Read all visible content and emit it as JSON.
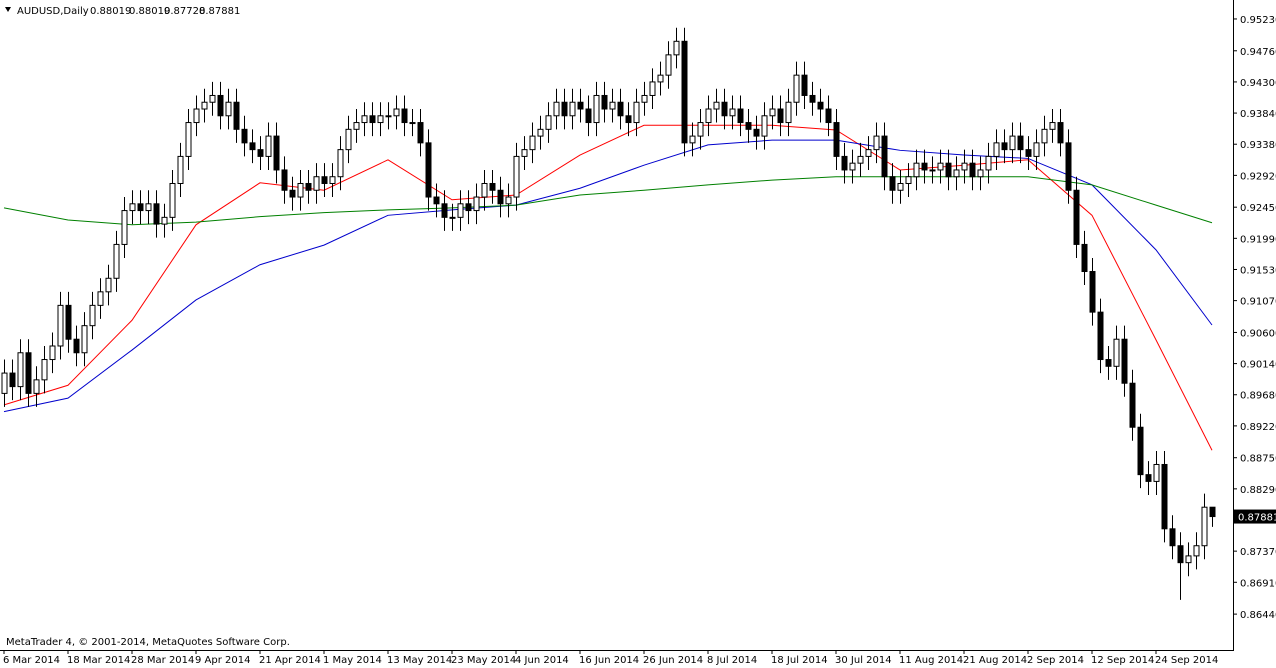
{
  "chart_data": {
    "type": "candlestick",
    "symbol_label": "AUDUSD,Daily",
    "footer": "MetaTrader 4, © 2001-2014, MetaQuotes Software Corp.",
    "ylim": [
      0.8591,
      0.9551
    ],
    "yticks": [
      {
        "value": 0.9523,
        "label": "0.95230"
      },
      {
        "value": 0.9476,
        "label": "0.94760"
      },
      {
        "value": 0.943,
        "label": "0.94300"
      },
      {
        "value": 0.9384,
        "label": "0.93840"
      },
      {
        "value": 0.9338,
        "label": "0.93380"
      },
      {
        "value": 0.9292,
        "label": "0.92920"
      },
      {
        "value": 0.9245,
        "label": "0.92450"
      },
      {
        "value": 0.9199,
        "label": "0.91990"
      },
      {
        "value": 0.9153,
        "label": "0.91530"
      },
      {
        "value": 0.9107,
        "label": "0.91070"
      },
      {
        "value": 0.906,
        "label": "0.90600"
      },
      {
        "value": 0.9014,
        "label": "0.90140"
      },
      {
        "value": 0.8968,
        "label": "0.89680"
      },
      {
        "value": 0.8922,
        "label": "0.89220"
      },
      {
        "value": 0.8875,
        "label": "0.88750"
      },
      {
        "value": 0.8829,
        "label": "0.88290"
      },
      {
        "value": 0.8737,
        "label": "0.87370"
      },
      {
        "value": 0.8691,
        "label": "0.86910"
      },
      {
        "value": 0.8644,
        "label": "0.86440"
      }
    ],
    "xticks": [
      {
        "value": 0,
        "label": "6 Mar 2014"
      },
      {
        "value": 8,
        "label": "18 Mar 2014"
      },
      {
        "value": 16,
        "label": "28 Mar 2014"
      },
      {
        "value": 24,
        "label": "9 Apr 2014"
      },
      {
        "value": 32,
        "label": "21 Apr 2014"
      },
      {
        "value": 40,
        "label": "1 May 2014"
      },
      {
        "value": 48,
        "label": "13 May 2014"
      },
      {
        "value": 56,
        "label": "23 May 2014"
      },
      {
        "value": 64,
        "label": "4 Jun 2014"
      },
      {
        "value": 72,
        "label": "16 Jun 2014"
      },
      {
        "value": 80,
        "label": "26 Jun 2014"
      },
      {
        "value": 88,
        "label": "8 Jul 2014"
      },
      {
        "value": 96,
        "label": "18 Jul 2014"
      },
      {
        "value": 104,
        "label": "30 Jul 2014"
      },
      {
        "value": 112,
        "label": "11 Aug 2014"
      },
      {
        "value": 120,
        "label": "21 Aug 2014"
      },
      {
        "value": 128,
        "label": "2 Sep 2014"
      },
      {
        "value": 136,
        "label": "12 Sep 2014"
      },
      {
        "value": 144,
        "label": "24 Sep 2014"
      }
    ],
    "open": [
      0.897,
      0.9,
      0.898,
      0.903,
      0.897,
      0.899,
      0.902,
      0.904,
      0.91,
      0.905,
      0.903,
      0.907,
      0.91,
      0.912,
      0.914,
      0.919,
      0.924,
      0.925,
      0.924,
      0.925,
      0.922,
      0.923,
      0.928,
      0.932,
      0.937,
      0.939,
      0.94,
      0.941,
      0.938,
      0.94,
      0.936,
      0.934,
      0.933,
      0.932,
      0.935,
      0.93,
      0.927,
      0.926,
      0.928,
      0.927,
      0.929,
      0.928,
      0.929,
      0.933,
      0.936,
      0.937,
      0.938,
      0.937,
      0.938,
      0.938,
      0.939,
      0.937,
      0.937,
      0.934,
      0.926,
      0.925,
      0.923,
      0.923,
      0.925,
      0.924,
      0.926,
      0.928,
      0.927,
      0.925,
      0.926,
      0.932,
      0.933,
      0.935,
      0.936,
      0.938,
      0.94,
      0.938,
      0.94,
      0.939,
      0.937,
      0.941,
      0.939,
      0.94,
      0.938,
      0.937,
      0.94,
      0.941,
      0.943,
      0.944,
      0.947,
      0.949,
      0.934,
      0.935,
      0.937,
      0.939,
      0.94,
      0.938,
      0.939,
      0.937,
      0.936,
      0.935,
      0.938,
      0.939,
      0.937,
      0.94,
      0.944,
      0.941,
      0.94,
      0.939,
      0.937,
      0.932,
      0.93,
      0.931,
      0.932,
      0.933,
      0.935,
      0.929,
      0.927,
      0.928,
      0.929,
      0.931,
      0.93,
      0.93,
      0.931,
      0.929,
      0.93,
      0.931,
      0.929,
      0.93,
      0.932,
      0.934,
      0.933,
      0.935,
      0.933,
      0.932,
      0.934,
      0.936,
      0.937,
      0.934,
      0.927,
      0.919,
      0.915,
      0.909,
      0.902,
      0.901,
      0.905,
      0.8985,
      0.892,
      0.885,
      0.884,
      0.8865,
      0.877,
      0.8745,
      0.872,
      0.873,
      0.8745,
      0.88019
    ],
    "high": [
      0.902,
      0.902,
      0.905,
      0.905,
      0.901,
      0.904,
      0.906,
      0.912,
      0.912,
      0.907,
      0.909,
      0.912,
      0.914,
      0.916,
      0.921,
      0.926,
      0.927,
      0.927,
      0.927,
      0.927,
      0.925,
      0.93,
      0.934,
      0.939,
      0.941,
      0.942,
      0.943,
      0.943,
      0.942,
      0.942,
      0.938,
      0.936,
      0.935,
      0.937,
      0.937,
      0.932,
      0.929,
      0.93,
      0.93,
      0.931,
      0.931,
      0.931,
      0.935,
      0.938,
      0.939,
      0.94,
      0.94,
      0.94,
      0.94,
      0.941,
      0.941,
      0.939,
      0.939,
      0.936,
      0.928,
      0.927,
      0.925,
      0.927,
      0.927,
      0.928,
      0.93,
      0.93,
      0.929,
      0.928,
      0.934,
      0.935,
      0.937,
      0.938,
      0.94,
      0.942,
      0.942,
      0.942,
      0.942,
      0.941,
      0.943,
      0.943,
      0.942,
      0.942,
      0.94,
      0.942,
      0.943,
      0.945,
      0.946,
      0.949,
      0.951,
      0.951,
      0.937,
      0.939,
      0.941,
      0.942,
      0.942,
      0.941,
      0.941,
      0.939,
      0.938,
      0.94,
      0.941,
      0.941,
      0.942,
      0.946,
      0.946,
      0.943,
      0.942,
      0.941,
      0.939,
      0.934,
      0.933,
      0.934,
      0.935,
      0.937,
      0.937,
      0.931,
      0.93,
      0.931,
      0.933,
      0.933,
      0.932,
      0.933,
      0.933,
      0.932,
      0.933,
      0.933,
      0.932,
      0.934,
      0.936,
      0.936,
      0.937,
      0.937,
      0.935,
      0.936,
      0.938,
      0.939,
      0.939,
      0.936,
      0.929,
      0.921,
      0.917,
      0.911,
      0.904,
      0.907,
      0.907,
      0.9005,
      0.894,
      0.887,
      0.8885,
      0.8885,
      0.879,
      0.8765,
      0.875,
      0.8765,
      0.8822,
      0.88019
    ],
    "low": [
      0.895,
      0.896,
      0.896,
      0.895,
      0.895,
      0.897,
      0.9,
      0.902,
      0.903,
      0.901,
      0.901,
      0.905,
      0.908,
      0.91,
      0.912,
      0.917,
      0.922,
      0.922,
      0.922,
      0.92,
      0.92,
      0.921,
      0.926,
      0.93,
      0.935,
      0.937,
      0.938,
      0.936,
      0.936,
      0.934,
      0.932,
      0.931,
      0.93,
      0.93,
      0.928,
      0.925,
      0.924,
      0.924,
      0.925,
      0.925,
      0.926,
      0.926,
      0.927,
      0.931,
      0.934,
      0.935,
      0.935,
      0.935,
      0.936,
      0.936,
      0.935,
      0.935,
      0.932,
      0.924,
      0.923,
      0.921,
      0.921,
      0.921,
      0.922,
      0.922,
      0.924,
      0.925,
      0.923,
      0.923,
      0.924,
      0.93,
      0.931,
      0.933,
      0.934,
      0.936,
      0.936,
      0.936,
      0.937,
      0.935,
      0.935,
      0.937,
      0.937,
      0.936,
      0.935,
      0.935,
      0.938,
      0.939,
      0.941,
      0.942,
      0.945,
      0.932,
      0.932,
      0.933,
      0.935,
      0.937,
      0.936,
      0.936,
      0.935,
      0.934,
      0.933,
      0.933,
      0.936,
      0.935,
      0.935,
      0.938,
      0.939,
      0.938,
      0.937,
      0.935,
      0.93,
      0.928,
      0.928,
      0.929,
      0.93,
      0.931,
      0.927,
      0.925,
      0.925,
      0.926,
      0.927,
      0.928,
      0.928,
      0.928,
      0.927,
      0.927,
      0.928,
      0.927,
      0.927,
      0.928,
      0.93,
      0.931,
      0.931,
      0.931,
      0.93,
      0.93,
      0.932,
      0.934,
      0.932,
      0.925,
      0.917,
      0.913,
      0.907,
      0.9,
      0.899,
      0.899,
      0.8965,
      0.89,
      0.883,
      0.882,
      0.882,
      0.875,
      0.8725,
      0.8665,
      0.87,
      0.871,
      0.8725,
      0.87728
    ],
    "close": [
      0.9,
      0.898,
      0.903,
      0.897,
      0.899,
      0.902,
      0.904,
      0.91,
      0.905,
      0.903,
      0.907,
      0.91,
      0.912,
      0.914,
      0.919,
      0.924,
      0.925,
      0.924,
      0.925,
      0.922,
      0.923,
      0.928,
      0.932,
      0.937,
      0.939,
      0.94,
      0.941,
      0.938,
      0.94,
      0.936,
      0.934,
      0.933,
      0.932,
      0.935,
      0.93,
      0.927,
      0.926,
      0.928,
      0.927,
      0.929,
      0.928,
      0.929,
      0.933,
      0.936,
      0.937,
      0.938,
      0.937,
      0.938,
      0.938,
      0.939,
      0.937,
      0.937,
      0.934,
      0.926,
      0.925,
      0.923,
      0.923,
      0.925,
      0.924,
      0.926,
      0.928,
      0.927,
      0.925,
      0.926,
      0.932,
      0.933,
      0.935,
      0.936,
      0.938,
      0.94,
      0.938,
      0.94,
      0.939,
      0.937,
      0.941,
      0.939,
      0.94,
      0.938,
      0.937,
      0.94,
      0.941,
      0.943,
      0.944,
      0.947,
      0.949,
      0.934,
      0.935,
      0.937,
      0.939,
      0.94,
      0.938,
      0.939,
      0.937,
      0.936,
      0.935,
      0.938,
      0.939,
      0.937,
      0.94,
      0.944,
      0.941,
      0.94,
      0.939,
      0.937,
      0.932,
      0.93,
      0.931,
      0.932,
      0.933,
      0.935,
      0.929,
      0.927,
      0.928,
      0.929,
      0.931,
      0.93,
      0.93,
      0.931,
      0.929,
      0.93,
      0.931,
      0.929,
      0.93,
      0.932,
      0.934,
      0.933,
      0.935,
      0.933,
      0.932,
      0.934,
      0.936,
      0.937,
      0.934,
      0.927,
      0.919,
      0.915,
      0.909,
      0.902,
      0.901,
      0.905,
      0.8985,
      0.892,
      0.885,
      0.884,
      0.8865,
      0.877,
      0.8745,
      0.872,
      0.873,
      0.8745,
      0.88019,
      0.87881
    ],
    "series": [
      {
        "color": "#ff0000",
        "x": [
          0,
          8,
          16,
          24,
          32,
          40,
          48,
          56,
          64,
          72,
          80,
          88,
          96,
          104,
          112,
          120,
          128,
          136,
          144,
          151
        ],
        "values": [
          0.8953,
          0.8982,
          0.9078,
          0.9219,
          0.9281,
          0.927,
          0.9315,
          0.9256,
          0.9263,
          0.9322,
          0.9366,
          0.9366,
          0.9366,
          0.9359,
          0.93,
          0.9307,
          0.9315,
          0.9233,
          0.9049,
          0.8886
        ]
      },
      {
        "color": "#0000cc",
        "x": [
          0,
          8,
          16,
          24,
          32,
          40,
          48,
          56,
          64,
          72,
          80,
          88,
          96,
          104,
          112,
          120,
          128,
          136,
          144,
          151
        ],
        "values": [
          0.8943,
          0.8963,
          0.9034,
          0.9108,
          0.916,
          0.9189,
          0.9233,
          0.9241,
          0.9248,
          0.9273,
          0.9307,
          0.9337,
          0.9344,
          0.9344,
          0.9329,
          0.9322,
          0.9317,
          0.9278,
          0.9182,
          0.9071
        ]
      },
      {
        "color": "#008000",
        "x": [
          0,
          8,
          16,
          24,
          32,
          40,
          48,
          56,
          64,
          72,
          80,
          88,
          96,
          104,
          112,
          120,
          128,
          136,
          144,
          151
        ],
        "values": [
          0.9244,
          0.9226,
          0.9219,
          0.9223,
          0.9231,
          0.9237,
          0.9241,
          0.9244,
          0.9248,
          0.9263,
          0.927,
          0.9278,
          0.9285,
          0.929,
          0.929,
          0.929,
          0.929,
          0.9278,
          0.9248,
          0.9222
        ]
      }
    ]
  }
}
